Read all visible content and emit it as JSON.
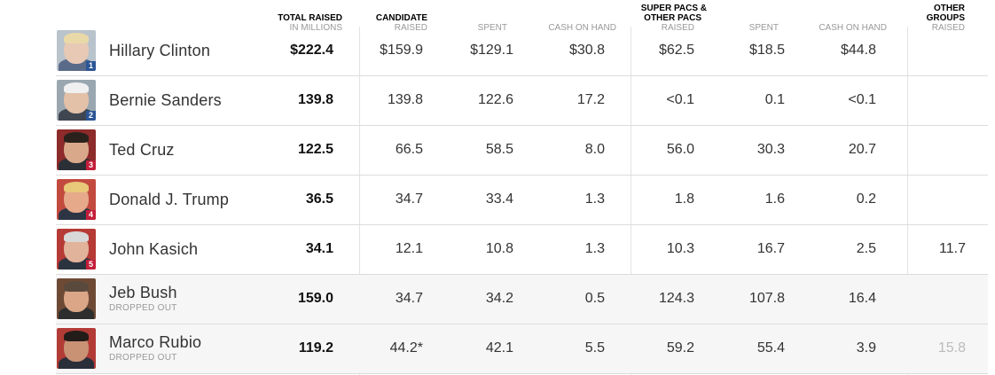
{
  "headers": {
    "total_raised": {
      "title": "TOTAL RAISED",
      "sub": "IN MILLIONS"
    },
    "candidate": {
      "title": "CANDIDATE",
      "sub": "RAISED"
    },
    "candidate_spent": {
      "title": "",
      "sub": "SPENT"
    },
    "candidate_cash": {
      "title": "",
      "sub": "CASH ON HAND"
    },
    "superpacs": {
      "title_line1": "SUPER PACS &",
      "title_line2": "OTHER PACS",
      "sub": "RAISED"
    },
    "superpacs_spent": {
      "title": "",
      "sub": "SPENT"
    },
    "superpacs_cash": {
      "title": "",
      "sub": "CASH ON HAND"
    },
    "other_groups": {
      "title_line1": "OTHER",
      "title_line2": "GROUPS",
      "sub": "RAISED"
    }
  },
  "rows": [
    {
      "name": "Hillary Clinton",
      "status": "",
      "rank": "1",
      "rank_color": "#2b5596",
      "photo": {
        "face": "#e8c9b5",
        "hair": "#e9d9a8",
        "body": "#5a6b8a",
        "bg": "#b9c3cc"
      },
      "total": "$222.4",
      "cand_raised": "$159.9",
      "cand_spent": "$129.1",
      "cand_cash": "$30.8",
      "pac_raised": "$62.5",
      "pac_spent": "$18.5",
      "pac_cash": "$44.8",
      "other": ""
    },
    {
      "name": "Bernie Sanders",
      "status": "",
      "rank": "2",
      "rank_color": "#2b5596",
      "photo": {
        "face": "#e3c0a8",
        "hair": "#f0f0f0",
        "body": "#3f4650",
        "bg": "#9aa7b1"
      },
      "total": "139.8",
      "cand_raised": "139.8",
      "cand_spent": "122.6",
      "cand_cash": "17.2",
      "pac_raised": "<0.1",
      "pac_spent": "0.1",
      "pac_cash": "<0.1",
      "other": ""
    },
    {
      "name": "Ted Cruz",
      "status": "",
      "rank": "3",
      "rank_color": "#c41e3a",
      "photo": {
        "face": "#d9a88b",
        "hair": "#2a211d",
        "body": "#2b2f36",
        "bg": "#8d2a2a"
      },
      "total": "122.5",
      "cand_raised": "66.5",
      "cand_spent": "58.5",
      "cand_cash": "8.0",
      "pac_raised": "56.0",
      "pac_spent": "30.3",
      "pac_cash": "20.7",
      "other": ""
    },
    {
      "name": "Donald J. Trump",
      "status": "",
      "rank": "4",
      "rank_color": "#c41e3a",
      "photo": {
        "face": "#e6a98a",
        "hair": "#e8c879",
        "body": "#2d3544",
        "bg": "#c34a3f"
      },
      "total": "36.5",
      "cand_raised": "34.7",
      "cand_spent": "33.4",
      "cand_cash": "1.3",
      "pac_raised": "1.8",
      "pac_spent": "1.6",
      "pac_cash": "0.2",
      "other": ""
    },
    {
      "name": "John Kasich",
      "status": "",
      "rank": "5",
      "rank_color": "#c41e3a",
      "photo": {
        "face": "#e1b39b",
        "hair": "#d8d8d8",
        "body": "#2c3340",
        "bg": "#b63a35"
      },
      "total": "34.1",
      "cand_raised": "12.1",
      "cand_spent": "10.8",
      "cand_cash": "1.3",
      "pac_raised": "10.3",
      "pac_spent": "16.7",
      "pac_cash": "2.5",
      "other": "11.7"
    },
    {
      "name": "Jeb Bush",
      "status": "DROPPED OUT",
      "rank": "",
      "rank_color": "",
      "photo": {
        "face": "#dba688",
        "hair": "#5a4a3e",
        "body": "#2e2e2e",
        "bg": "#6e4a35"
      },
      "total": "159.0",
      "cand_raised": "34.7",
      "cand_spent": "34.2",
      "cand_cash": "0.5",
      "pac_raised": "124.3",
      "pac_spent": "107.8",
      "pac_cash": "16.4",
      "other": ""
    },
    {
      "name": "Marco Rubio",
      "status": "DROPPED OUT",
      "rank": "",
      "rank_color": "",
      "photo": {
        "face": "#c99275",
        "hair": "#241c18",
        "body": "#2a2f3a",
        "bg": "#b33b36"
      },
      "total": "119.2",
      "cand_raised": "44.2*",
      "cand_spent": "42.1",
      "cand_cash": "5.5",
      "pac_raised": "59.2",
      "pac_spent": "55.4",
      "pac_cash": "3.9",
      "other": "15.8",
      "other_faded": true
    }
  ]
}
